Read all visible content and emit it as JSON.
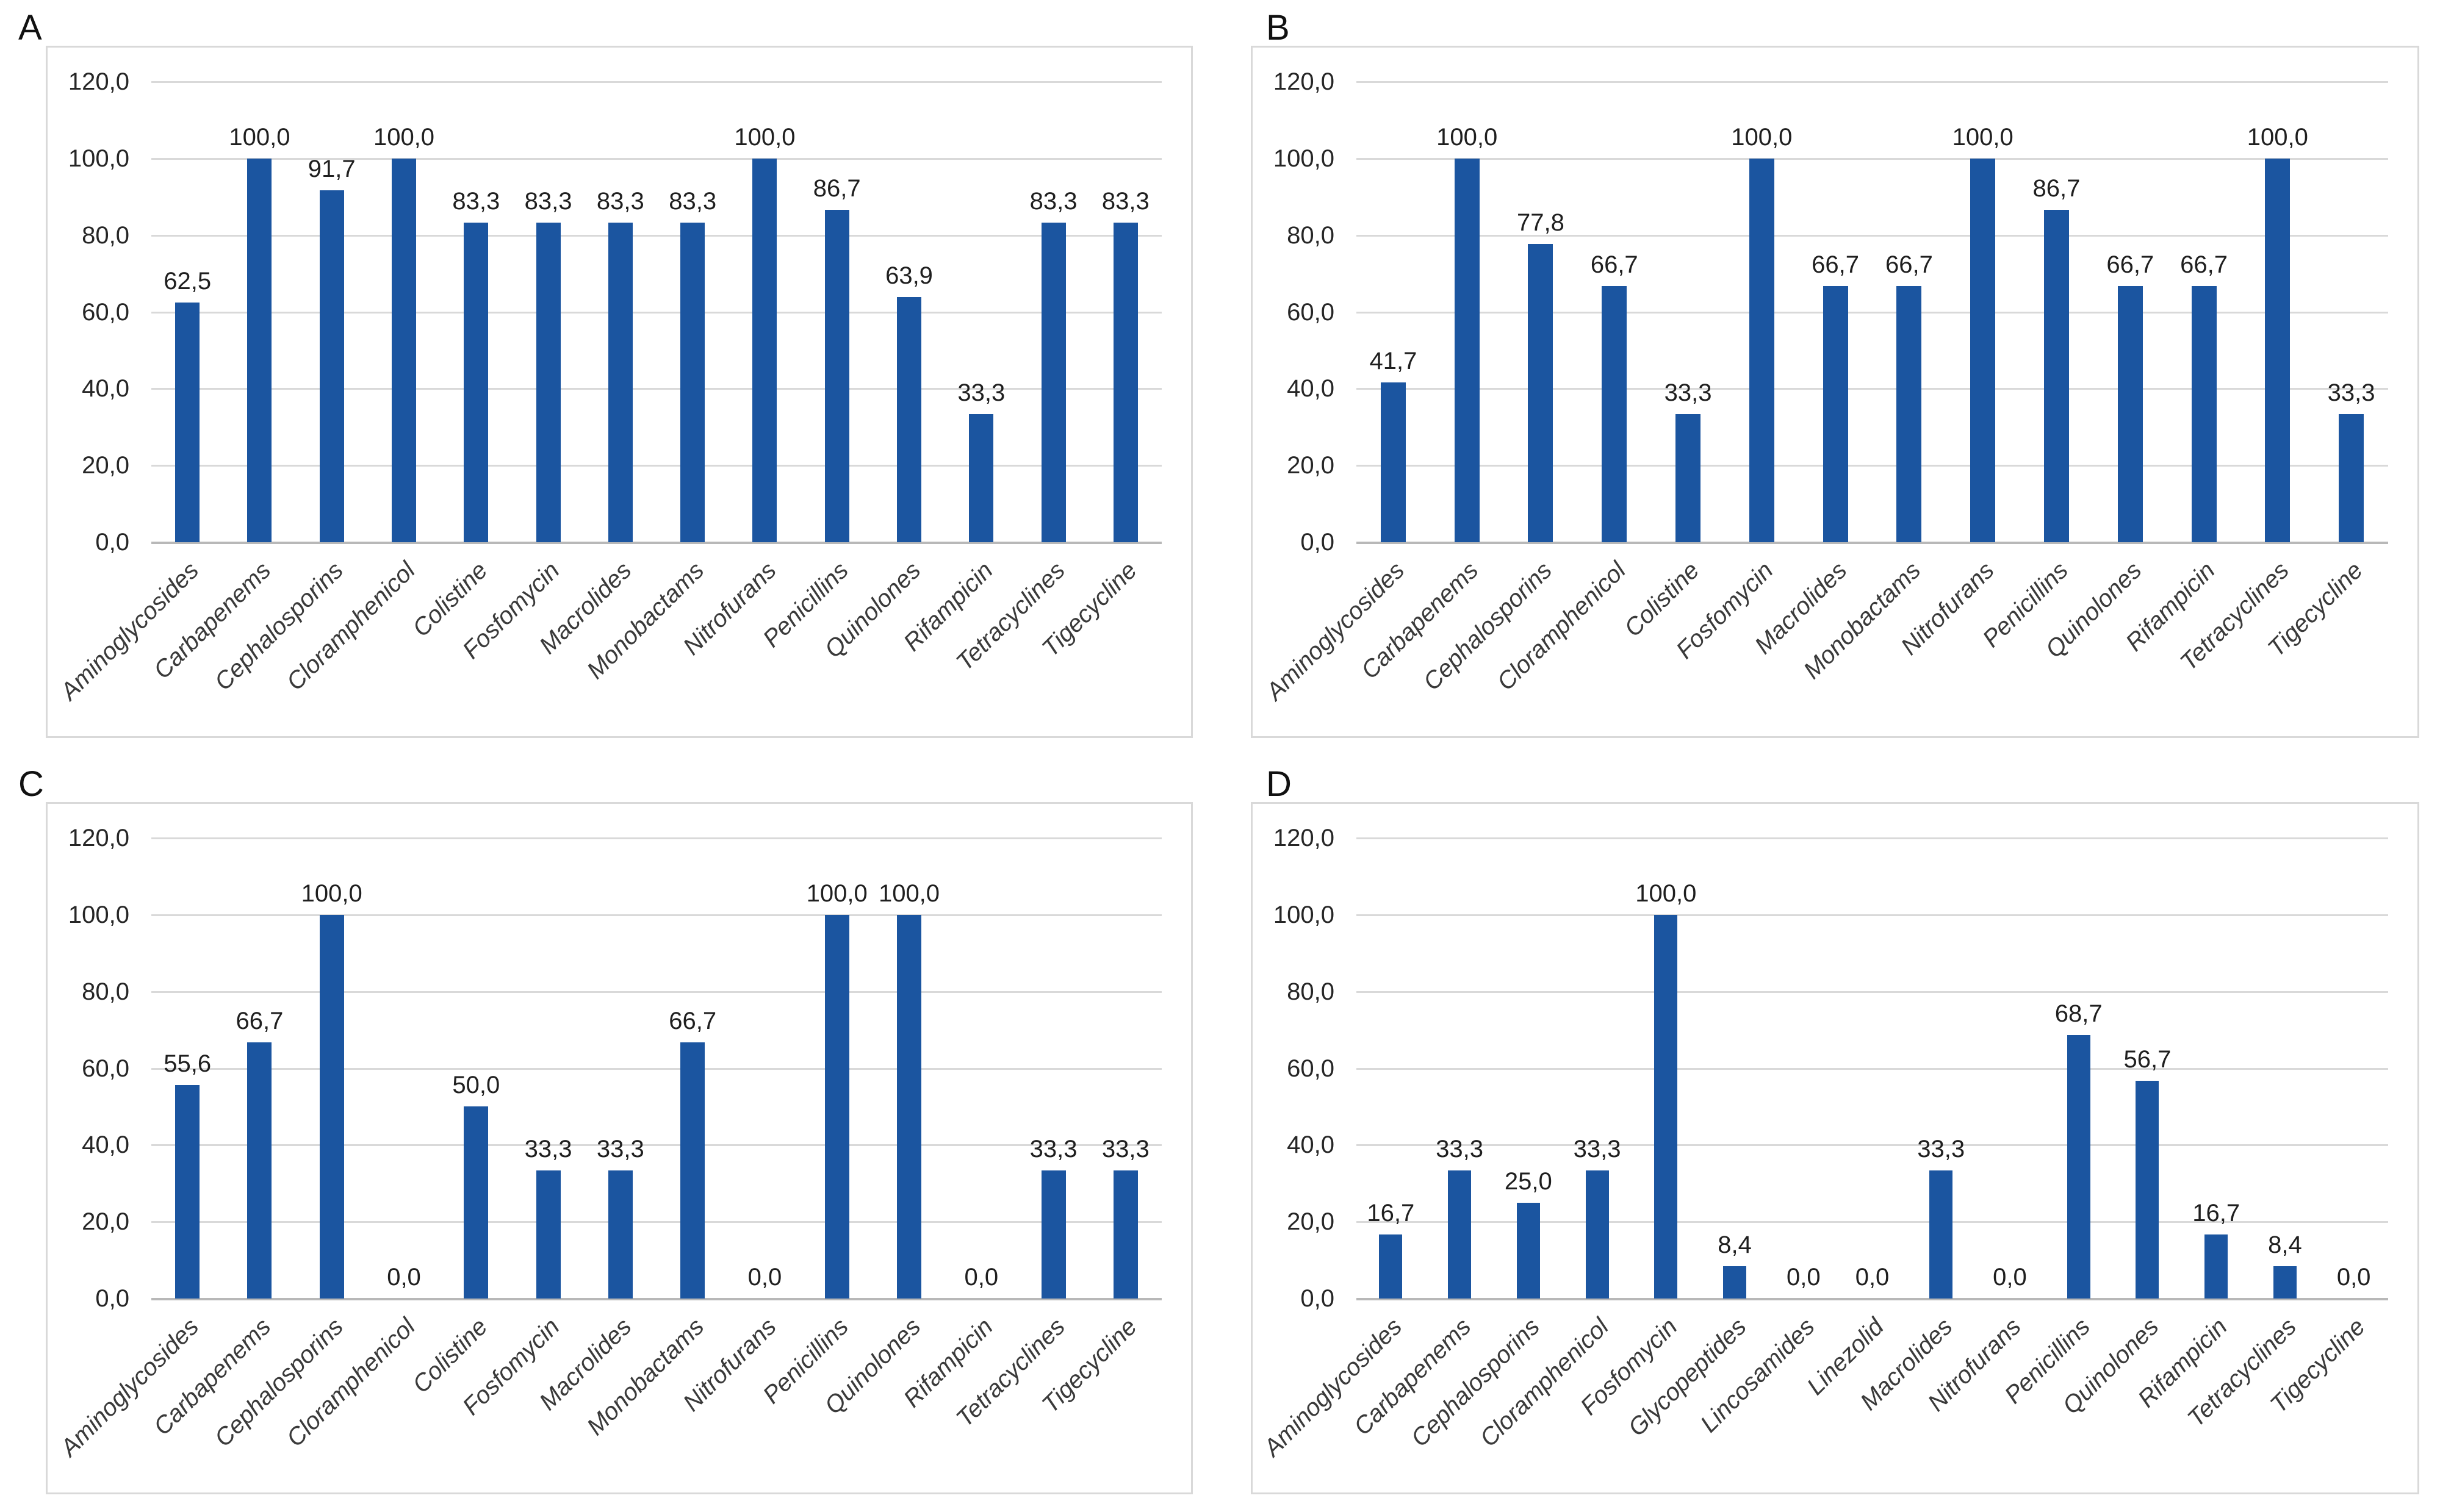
{
  "figure": {
    "description": "Four-panel bar chart figure (A, B, C, D) showing percentage values per antibiotic class",
    "decimal_separator": ",",
    "legend": "none",
    "title": ""
  },
  "colors": {
    "bar": "#1B55A0",
    "gridline": "#D9D9D9",
    "axis_line": "#B8B8B8",
    "chart_border": "#D9D9D9",
    "value_label_text": "#1F1F1F",
    "tick_label_text": "#262626",
    "category_label_text": "#3A3A3A",
    "panel_letter_text": "#111111",
    "background": "#FFFFFF"
  },
  "axis": {
    "ylim": [
      0,
      120
    ],
    "yticks": [
      120,
      100,
      80,
      60,
      40,
      20,
      0
    ],
    "ytick_labels": [
      "120,0",
      "100,0",
      "80,0",
      "60,0",
      "40,0",
      "20,0",
      "0,0"
    ],
    "grid": true,
    "xlabel": "",
    "ylabel": ""
  },
  "chart_data": [
    {
      "panel_label": "A",
      "type": "bar",
      "ylim": [
        0,
        120
      ],
      "categories": [
        "Aminoglycosides",
        "Carbapenems",
        "Cephalosporins",
        "Cloramphenicol",
        "Colistine",
        "Fosfomycin",
        "Macrolides",
        "Monobactams",
        "Nitrofurans",
        "Penicillins",
        "Quinolones",
        "Rifampicin",
        "Tetracyclines",
        "Tigecycline"
      ],
      "values": [
        62.5,
        100.0,
        91.7,
        100.0,
        83.3,
        83.3,
        83.3,
        83.3,
        100.0,
        86.7,
        63.9,
        33.3,
        83.3,
        83.3
      ],
      "value_labels": [
        "62,5",
        "100,0",
        "91,7",
        "100,0",
        "83,3",
        "83,3",
        "83,3",
        "83,3",
        "100,0",
        "86,7",
        "63,9",
        "33,3",
        "83,3",
        "83,3"
      ]
    },
    {
      "panel_label": "B",
      "type": "bar",
      "ylim": [
        0,
        120
      ],
      "categories": [
        "Aminoglycosides",
        "Carbapenems",
        "Cephalosporins",
        "Cloramphenicol",
        "Colistine",
        "Fosfomycin",
        "Macrolides",
        "Monobactams",
        "Nitrofurans",
        "Penicillins",
        "Quinolones",
        "Rifampicin",
        "Tetracyclines",
        "Tigecycline"
      ],
      "values": [
        41.7,
        100.0,
        77.8,
        66.7,
        33.3,
        100.0,
        66.7,
        66.7,
        100.0,
        86.7,
        66.7,
        66.7,
        100.0,
        33.3
      ],
      "value_labels": [
        "41,7",
        "100,0",
        "77,8",
        "66,7",
        "33,3",
        "100,0",
        "66,7",
        "66,7",
        "100,0",
        "86,7",
        "66,7",
        "66,7",
        "100,0",
        "33,3"
      ]
    },
    {
      "panel_label": "C",
      "type": "bar",
      "ylim": [
        0,
        120
      ],
      "categories": [
        "Aminoglycosides",
        "Carbapenems",
        "Cephalosporins",
        "Cloramphenicol",
        "Colistine",
        "Fosfomycin",
        "Macrolides",
        "Monobactams",
        "Nitrofurans",
        "Penicillins",
        "Quinolones",
        "Rifampicin",
        "Tetracyclines",
        "Tigecycline"
      ],
      "values": [
        55.6,
        66.7,
        100.0,
        0.0,
        50.0,
        33.3,
        33.3,
        66.7,
        0.0,
        100.0,
        100.0,
        0.0,
        33.3,
        33.3
      ],
      "value_labels": [
        "55,6",
        "66,7",
        "100,0",
        "0,0",
        "50,0",
        "33,3",
        "33,3",
        "66,7",
        "0,0",
        "100,0",
        "100,0",
        "0,0",
        "33,3",
        "33,3"
      ]
    },
    {
      "panel_label": "D",
      "type": "bar",
      "ylim": [
        0,
        120
      ],
      "categories": [
        "Aminoglycosides",
        "Carbapenems",
        "Cephalosporins",
        "Cloramphenicol",
        "Fosfomycin",
        "Glycopeptides",
        "Lincosamides",
        "Linezolid",
        "Macrolides",
        "Nitrofurans",
        "Penicillins",
        "Quinolones",
        "Rifampicin",
        "Tetracyclines",
        "Tigecycline"
      ],
      "values": [
        16.7,
        33.3,
        25.0,
        33.3,
        100.0,
        8.4,
        0.0,
        0.0,
        33.3,
        0.0,
        68.7,
        56.7,
        16.7,
        8.4,
        0.0
      ],
      "value_labels": [
        "16,7",
        "33,3",
        "25,0",
        "33,3",
        "100,0",
        "8,4",
        "0,0",
        "0,0",
        "33,3",
        "0,0",
        "68,7",
        "56,7",
        "16,7",
        "8,4",
        "0,0"
      ]
    }
  ]
}
